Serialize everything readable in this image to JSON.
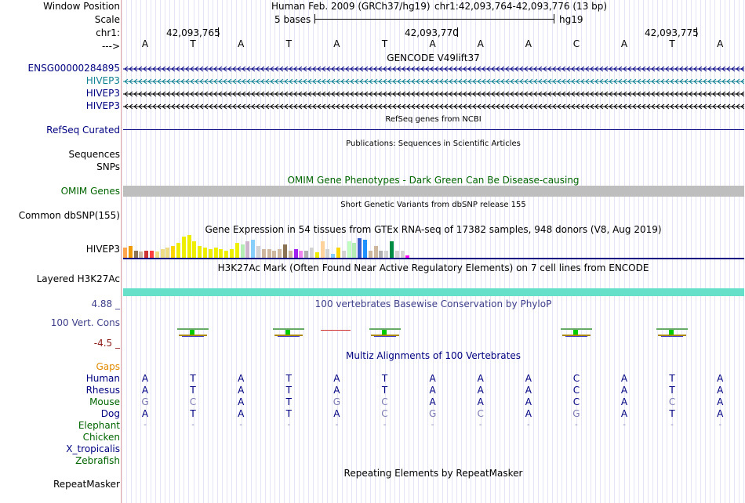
{
  "labels": {
    "window_position": "Window Position",
    "scale": "Scale",
    "chr": "chr1:",
    "arrow": "--->",
    "ensg": "ENSG00000284895",
    "hivep3_a": "HIVEP3",
    "hivep3_b": "HIVEP3",
    "hivep3_c": "HIVEP3",
    "refseq": "RefSeq Curated",
    "sequences": "Sequences",
    "snps": "SNPs",
    "omim": "OMIM Genes",
    "common_snp": "Common dbSNP(155)",
    "hivep3_gtex": "HIVEP3",
    "h3k27ac": "Layered H3K27Ac",
    "cons_max": "4.88 _",
    "cons_name": "100 Vert. Cons",
    "cons_min": "-4.5 _",
    "gaps": "Gaps",
    "human": "Human",
    "rhesus": "Rhesus",
    "mouse": "Mouse",
    "dog": "Dog",
    "elephant": "Elephant",
    "chicken": "Chicken",
    "xtrop": "X_tropicalis",
    "zebrafish": "Zebrafish",
    "repeatmasker": "RepeatMasker"
  },
  "header": {
    "assembly": "Human Feb. 2009 (GRCh37/hg19)",
    "position": "chr1:42,093,764-42,093,776 (13 bp)",
    "scale_text": "5 bases",
    "scale_db": "hg19",
    "coord_1": "42,093,765",
    "coord_2": "42,093,770",
    "coord_3": "42,093,775"
  },
  "titles": {
    "gencode": "GENCODE V49lift37",
    "refseq": "RefSeq genes from NCBI",
    "publications": "Publications: Sequences in Scientific Articles",
    "omim": "OMIM Gene Phenotypes - Dark Green Can Be Disease-causing",
    "snp": "Short Genetic Variants from dbSNP release 155",
    "gtex": "Gene Expression in 54 tissues from GTEx RNA-seq of 17382 samples, 948 donors (V8, Aug 2019)",
    "h3k27ac": "H3K27Ac Mark (Often Found Near Active Regulatory Elements) on 7 cell lines from ENCODE",
    "phylop": "100 vertebrates Basewise Conservation by PhyloP",
    "multiz": "Multiz Alignments of 100 Vertebrates",
    "repeat": "Repeating Elements by RepeatMasker"
  },
  "sequence": {
    "human": [
      "A",
      "T",
      "A",
      "T",
      "A",
      "T",
      "A",
      "A",
      "A",
      "C",
      "A",
      "T",
      "A"
    ],
    "rhesus": [
      "A",
      "T",
      "A",
      "T",
      "A",
      "T",
      "A",
      "A",
      "A",
      "C",
      "A",
      "T",
      "A"
    ],
    "mouse": [
      "G",
      "C",
      "A",
      "T",
      "G",
      "C",
      "A",
      "A",
      "A",
      "C",
      "A",
      "C",
      "A"
    ],
    "dog": [
      "A",
      "T",
      "A",
      "T",
      "A",
      "C",
      "G",
      "C",
      "A",
      "G",
      "A",
      "T",
      "A"
    ],
    "elephant": [
      "-",
      "-",
      "-",
      "-",
      "-",
      "-",
      "-",
      "-",
      "-",
      "-",
      "-",
      "-",
      "-"
    ]
  },
  "colors": {
    "label_blue": "#000080",
    "label_green": "#006400",
    "hivep3_teal": "#0f8090",
    "omim_gray": "#bebebe",
    "h3k27ac_teal": "#66e0c8",
    "phylop_blue": "#3f3f8a",
    "cons_red": "#8b1a1a",
    "gaps_orange": "#e08a00",
    "dim_base": "#7b7bb0"
  },
  "gtex_bars": [
    {
      "h": 14,
      "c": "#ffa54f"
    },
    {
      "h": 16,
      "c": "#ee9a00"
    },
    {
      "h": 10,
      "c": "#8b7355"
    },
    {
      "h": 9,
      "c": "#cdb79e"
    },
    {
      "h": 10,
      "c": "#cd3333"
    },
    {
      "h": 10,
      "c": "#ff4040"
    },
    {
      "h": 9,
      "c": "#eedd82"
    },
    {
      "h": 12,
      "c": "#eedd82"
    },
    {
      "h": 14,
      "c": "#eedd82"
    },
    {
      "h": 16,
      "c": "#ffd700"
    },
    {
      "h": 20,
      "c": "#eeee00"
    },
    {
      "h": 28,
      "c": "#eeee00"
    },
    {
      "h": 30,
      "c": "#eeee00"
    },
    {
      "h": 22,
      "c": "#eeee00"
    },
    {
      "h": 16,
      "c": "#eeee00"
    },
    {
      "h": 14,
      "c": "#eeee00"
    },
    {
      "h": 12,
      "c": "#eeee00"
    },
    {
      "h": 14,
      "c": "#eeee00"
    },
    {
      "h": 12,
      "c": "#eeee00"
    },
    {
      "h": 10,
      "c": "#eeee00"
    },
    {
      "h": 12,
      "c": "#eeee00"
    },
    {
      "h": 20,
      "c": "#eeee00"
    },
    {
      "h": 18,
      "c": "#b4eeb4"
    },
    {
      "h": 22,
      "c": "#cdb5cd"
    },
    {
      "h": 24,
      "c": "#87cefa"
    },
    {
      "h": 16,
      "c": "#d3d3d3"
    },
    {
      "h": 12,
      "c": "#cdb79e"
    },
    {
      "h": 12,
      "c": "#cdb79e"
    },
    {
      "h": 10,
      "c": "#cdb79e"
    },
    {
      "h": 12,
      "c": "#cdb79e"
    },
    {
      "h": 18,
      "c": "#8b7355"
    },
    {
      "h": 10,
      "c": "#cdb79e"
    },
    {
      "h": 12,
      "c": "#a020f0"
    },
    {
      "h": 10,
      "c": "#ee82ee"
    },
    {
      "h": 10,
      "c": "#b0b0b0"
    },
    {
      "h": 14,
      "c": "#d3d3d3"
    },
    {
      "h": 8,
      "c": "#eeee00"
    },
    {
      "h": 22,
      "c": "#ffd39b"
    },
    {
      "h": 12,
      "c": "#d3d3d3"
    },
    {
      "h": 6,
      "c": "#87cefa"
    },
    {
      "h": 14,
      "c": "#ffd700"
    },
    {
      "h": 10,
      "c": "#d3d3d3"
    },
    {
      "h": 22,
      "c": "#c1ffc1"
    },
    {
      "h": 20,
      "c": "#b4eeb4"
    },
    {
      "h": 26,
      "c": "#3a5fcd"
    },
    {
      "h": 24,
      "c": "#1e90ff"
    },
    {
      "h": 10,
      "c": "#cdb79e"
    },
    {
      "h": 16,
      "c": "#cdb79e"
    },
    {
      "h": 10,
      "c": "#b0b0b0"
    },
    {
      "h": 10,
      "c": "#d3d3d3"
    },
    {
      "h": 22,
      "c": "#008b45"
    },
    {
      "h": 10,
      "c": "#d3d3d3"
    },
    {
      "h": 10,
      "c": "#d3d3d3"
    },
    {
      "h": 4,
      "c": "#ff00ff"
    }
  ]
}
